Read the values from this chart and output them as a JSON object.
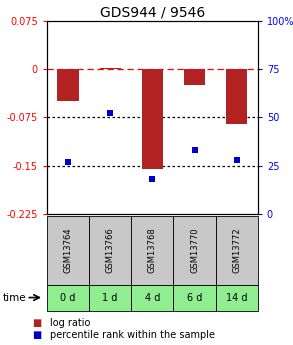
{
  "title": "GDS944 / 9546",
  "samples": [
    "GSM13764",
    "GSM13766",
    "GSM13768",
    "GSM13770",
    "GSM13772"
  ],
  "time_labels": [
    "0 d",
    "1 d",
    "4 d",
    "6 d",
    "14 d"
  ],
  "log_ratio": [
    -0.05,
    0.002,
    -0.155,
    -0.025,
    -0.085
  ],
  "percentile_rank": [
    27,
    52,
    18,
    33,
    28
  ],
  "ylim_left": [
    -0.225,
    0.075
  ],
  "ylim_right": [
    0,
    100
  ],
  "yticks_left": [
    0.075,
    0,
    -0.075,
    -0.15,
    -0.225
  ],
  "yticks_right": [
    100,
    75,
    50,
    25,
    0
  ],
  "hline_dashed": 0.0,
  "hline_dotted": [
    -0.075,
    -0.15
  ],
  "bar_color": "#B22222",
  "square_color": "#0000CD",
  "bar_width": 0.5,
  "legend_items": [
    "log ratio",
    "percentile rank within the sample"
  ],
  "legend_colors": [
    "#B22222",
    "#0000CD"
  ],
  "time_arrow_label": "time",
  "time_cell_color": "#90EE90",
  "gsm_cell_color": "#C8C8C8",
  "title_fontsize": 10,
  "tick_fontsize": 7,
  "legend_fontsize": 7
}
